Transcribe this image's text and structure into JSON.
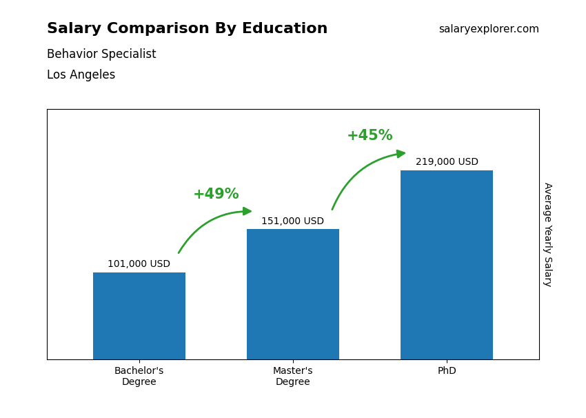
{
  "chart_data": {
    "type": "bar",
    "title": "Salary Comparison By Education",
    "subtitle": [
      "Behavior Specialist",
      "Los Angeles"
    ],
    "y_label": "Average Yearly Salary",
    "categories": [
      "Bachelor's\nDegree",
      "Master's\nDegree",
      "PhD"
    ],
    "values": [
      101000,
      151000,
      219000
    ],
    "value_labels": [
      "101,000 USD",
      "151,000 USD",
      "219,000 USD"
    ],
    "data_labels": true,
    "ylim": [
      0,
      290000
    ],
    "yticks": [],
    "tick_labels": "x",
    "grid": false,
    "annotations": [
      {
        "text": "+49%",
        "between": [
          0,
          1
        ]
      },
      {
        "text": "+45%",
        "between": [
          1,
          2
        ]
      },
      {
        "text": "salaryexplorer.com"
      }
    ]
  }
}
